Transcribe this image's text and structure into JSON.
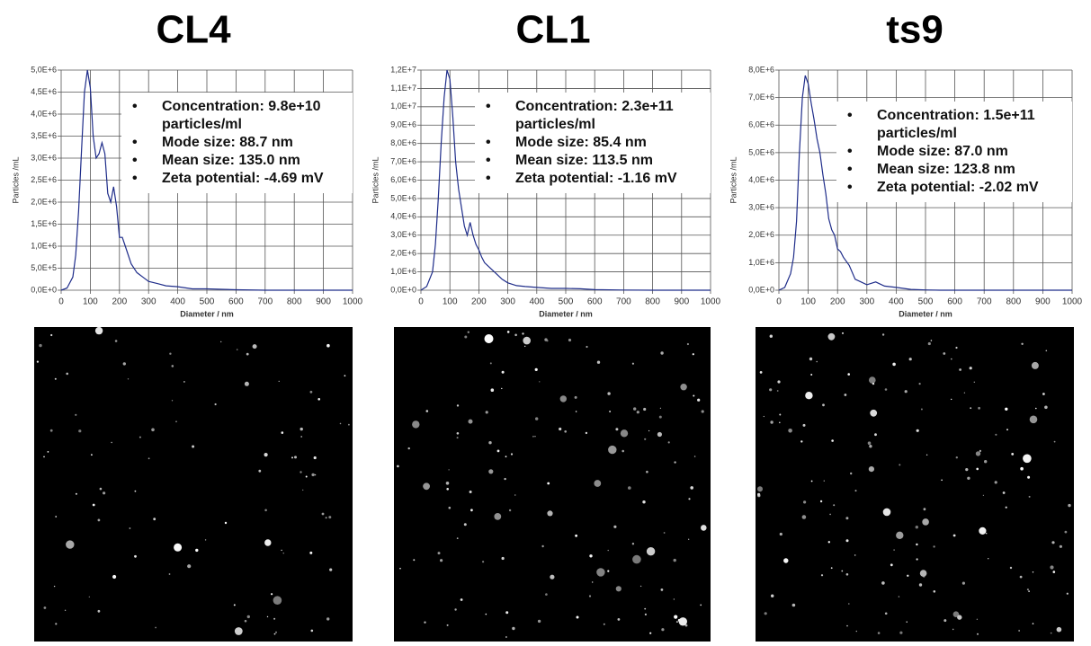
{
  "chart_data": [
    {
      "type": "line",
      "title": "CL4",
      "xlabel": "Diameter / nm",
      "ylabel": "Particles /mL",
      "color": "#1f2d8a",
      "grid": true,
      "x": [
        0,
        20,
        40,
        50,
        60,
        70,
        80,
        90,
        100,
        110,
        120,
        130,
        140,
        150,
        160,
        170,
        180,
        190,
        200,
        210,
        220,
        240,
        260,
        280,
        300,
        330,
        360,
        400,
        450,
        500,
        550,
        600,
        700,
        800,
        900,
        1000
      ],
      "values": [
        0,
        50000,
        300000,
        800000,
        1800000,
        3200000,
        4500000,
        5000000,
        4600000,
        3500000,
        3000000,
        3100000,
        3350000,
        3100000,
        2200000,
        2000000,
        2350000,
        1900000,
        1200000,
        1200000,
        1000000,
        600000,
        400000,
        300000,
        200000,
        150000,
        100000,
        80000,
        30000,
        30000,
        20000,
        10000,
        0,
        0,
        0,
        0
      ],
      "xlim": [
        0,
        1000
      ],
      "xticks": [
        0,
        100,
        200,
        300,
        400,
        500,
        600,
        700,
        800,
        900,
        1000
      ],
      "ylim": [
        0,
        5000000
      ],
      "yticks": [
        {
          "value": 0,
          "label": "0,0E+0"
        },
        {
          "value": 500000,
          "label": "5,0E+5"
        },
        {
          "value": 1000000,
          "label": "1,0E+6"
        },
        {
          "value": 1500000,
          "label": "1,5E+6"
        },
        {
          "value": 2000000,
          "label": "2,0E+6"
        },
        {
          "value": 2500000,
          "label": "2,5E+6"
        },
        {
          "value": 3000000,
          "label": "3,0E+6"
        },
        {
          "value": 3500000,
          "label": "3,5E+6"
        },
        {
          "value": 4000000,
          "label": "4,0E+6"
        },
        {
          "value": 4500000,
          "label": "4,5E+6"
        },
        {
          "value": 5000000,
          "label": "5,0E+6"
        }
      ],
      "annotations": [
        "Concentration: 9.8e+10 particles/ml",
        "Mode size: 88.7 nm",
        "Mean size: 135.0 nm",
        "Zeta potential: -4.69 mV"
      ]
    },
    {
      "type": "line",
      "title": "CL1",
      "xlabel": "Diameter / nm",
      "ylabel": "Particles /mL",
      "color": "#1f2d8a",
      "grid": true,
      "x": [
        0,
        20,
        40,
        50,
        60,
        70,
        80,
        90,
        100,
        110,
        120,
        130,
        140,
        150,
        160,
        170,
        180,
        190,
        200,
        210,
        220,
        240,
        260,
        280,
        300,
        330,
        360,
        400,
        450,
        500,
        550,
        600,
        700,
        800,
        900,
        1000
      ],
      "values": [
        0,
        200000,
        1000000,
        2500000,
        5000000,
        8000000,
        10500000,
        12000000,
        11500000,
        9500000,
        7000000,
        5500000,
        4500000,
        3500000,
        3000000,
        3700000,
        3000000,
        2500000,
        2200000,
        1800000,
        1500000,
        1200000,
        900000,
        600000,
        400000,
        250000,
        200000,
        150000,
        100000,
        100000,
        80000,
        30000,
        10000,
        0,
        0,
        0
      ],
      "xlim": [
        0,
        1000
      ],
      "xticks": [
        0,
        100,
        200,
        300,
        400,
        500,
        600,
        700,
        800,
        900,
        1000
      ],
      "ylim": [
        0,
        12000000
      ],
      "yticks": [
        {
          "value": 0,
          "label": "0,0E+0"
        },
        {
          "value": 1000000,
          "label": "1,0E+6"
        },
        {
          "value": 2000000,
          "label": "2,0E+6"
        },
        {
          "value": 3000000,
          "label": "3,0E+6"
        },
        {
          "value": 4000000,
          "label": "4,0E+6"
        },
        {
          "value": 5000000,
          "label": "5,0E+6"
        },
        {
          "value": 6000000,
          "label": "6,0E+6"
        },
        {
          "value": 7000000,
          "label": "7,0E+6"
        },
        {
          "value": 8000000,
          "label": "8,0E+6"
        },
        {
          "value": 9000000,
          "label": "9,0E+6"
        },
        {
          "value": 10000000,
          "label": "1,0E+7"
        },
        {
          "value": 11000000,
          "label": "1,1E+7"
        },
        {
          "value": 12000000,
          "label": "1,2E+7"
        }
      ],
      "annotations": [
        "Concentration: 2.3e+11 particles/ml",
        "Mode size: 85.4 nm",
        "Mean size: 113.5 nm",
        "Zeta potential: -1.16 mV"
      ]
    },
    {
      "type": "line",
      "title": "ts9",
      "xlabel": "Diameter / nm",
      "ylabel": "Particles /mL",
      "color": "#1f2d8a",
      "grid": true,
      "x": [
        0,
        20,
        40,
        50,
        60,
        70,
        80,
        90,
        100,
        110,
        120,
        130,
        140,
        150,
        160,
        170,
        180,
        190,
        200,
        210,
        220,
        240,
        260,
        280,
        300,
        330,
        360,
        400,
        450,
        500,
        550,
        600,
        700,
        800,
        900,
        1000
      ],
      "values": [
        0,
        100000,
        600000,
        1200000,
        2500000,
        5000000,
        7000000,
        7800000,
        7500000,
        6800000,
        6200000,
        5500000,
        5000000,
        4200000,
        3500000,
        2600000,
        2200000,
        2000000,
        1500000,
        1400000,
        1200000,
        900000,
        400000,
        300000,
        200000,
        300000,
        150000,
        100000,
        30000,
        10000,
        0,
        0,
        0,
        0,
        0,
        0
      ],
      "xlim": [
        0,
        1000
      ],
      "xticks": [
        0,
        100,
        200,
        300,
        400,
        500,
        600,
        700,
        800,
        900,
        1000
      ],
      "ylim": [
        0,
        8000000
      ],
      "yticks": [
        {
          "value": 0,
          "label": "0,0E+0"
        },
        {
          "value": 1000000,
          "label": "1,0E+6"
        },
        {
          "value": 2000000,
          "label": "2,0E+6"
        },
        {
          "value": 3000000,
          "label": "3,0E+6"
        },
        {
          "value": 4000000,
          "label": "4,0E+6"
        },
        {
          "value": 5000000,
          "label": "5,0E+6"
        },
        {
          "value": 6000000,
          "label": "6,0E+6"
        },
        {
          "value": 7000000,
          "label": "7,0E+6"
        },
        {
          "value": 8000000,
          "label": "8,0E+6"
        }
      ],
      "annotations": [
        "Concentration: 1.5e+11 particles/ml",
        "Mode size: 87.0 nm",
        "Mean size: 123.8 nm",
        "Zeta potential: -2.02 mV"
      ]
    }
  ]
}
